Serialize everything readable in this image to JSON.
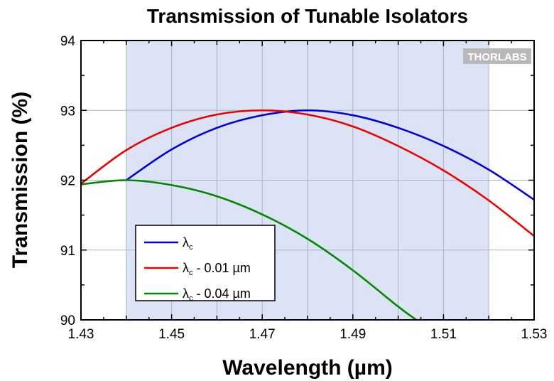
{
  "chart_data": {
    "type": "line",
    "title": "Transmission of Tunable Isolators",
    "xlabel": "Wavelength (µm)",
    "ylabel": "Transmission (%)",
    "xlim": [
      1.43,
      1.53
    ],
    "ylim": [
      90,
      94
    ],
    "xticks": [
      "1.43",
      "1.45",
      "1.47",
      "1.49",
      "1.51",
      "1.53"
    ],
    "yticks": [
      "90",
      "91",
      "92",
      "93",
      "94"
    ],
    "shaded_band": {
      "x": [
        1.44,
        1.52
      ],
      "color": "#dbe3f5"
    },
    "grid": true,
    "legend_position": "bottom-left",
    "series": [
      {
        "name": "λc",
        "legend_main": "λ",
        "legend_sub": "c",
        "legend_suffix": "",
        "color": "#0000dd",
        "x": [
          1.44,
          1.45,
          1.46,
          1.47,
          1.48,
          1.49,
          1.5,
          1.51,
          1.52,
          1.53
        ],
        "y": [
          92.0,
          92.44,
          92.75,
          92.93,
          93.0,
          92.93,
          92.75,
          92.49,
          92.15,
          91.72
        ]
      },
      {
        "name": "λc - 0.01 µm",
        "legend_main": "λ",
        "legend_sub": "c",
        "legend_suffix": " - 0.01 µm",
        "color": "#ee0000",
        "x": [
          1.43,
          1.44,
          1.45,
          1.46,
          1.47,
          1.48,
          1.49,
          1.5,
          1.51,
          1.52,
          1.53
        ],
        "y": [
          91.95,
          92.43,
          92.75,
          92.94,
          93.0,
          92.94,
          92.77,
          92.49,
          92.14,
          91.71,
          91.2
        ]
      },
      {
        "name": "λc - 0.04 µm",
        "legend_main": "λ",
        "legend_sub": "c",
        "legend_suffix": " - 0.04 µm",
        "color": "#008800",
        "x": [
          1.43,
          1.44,
          1.45,
          1.46,
          1.47,
          1.48,
          1.49,
          1.5,
          1.504
        ],
        "y": [
          91.94,
          92.0,
          91.93,
          91.77,
          91.51,
          91.16,
          90.71,
          90.19,
          90.0
        ]
      }
    ]
  },
  "watermark": {
    "text": "THORLABS"
  }
}
